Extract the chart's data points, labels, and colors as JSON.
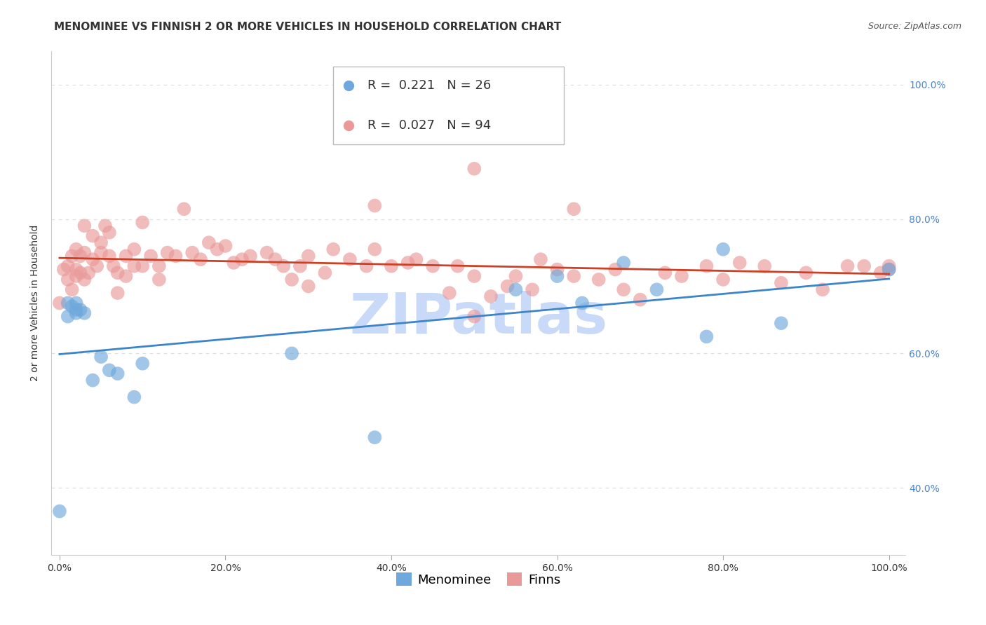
{
  "title": "MENOMINEE VS FINNISH 2 OR MORE VEHICLES IN HOUSEHOLD CORRELATION CHART",
  "source": "Source: ZipAtlas.com",
  "xlabel": "",
  "ylabel": "2 or more Vehicles in Household",
  "legend_labels": [
    "Menominee",
    "Finns"
  ],
  "legend_r_n": [
    {
      "R": "0.221",
      "N": "26",
      "color": "#6fa8dc"
    },
    {
      "R": "0.027",
      "N": "94",
      "color": "#ea9999"
    }
  ],
  "menominee_x": [
    0.0,
    0.01,
    0.01,
    0.015,
    0.02,
    0.02,
    0.02,
    0.025,
    0.03,
    0.04,
    0.05,
    0.06,
    0.07,
    0.09,
    0.1,
    0.28,
    0.38,
    0.55,
    0.6,
    0.63,
    0.68,
    0.72,
    0.78,
    0.8,
    0.87,
    1.0
  ],
  "menominee_y": [
    0.365,
    0.675,
    0.655,
    0.67,
    0.675,
    0.665,
    0.66,
    0.665,
    0.66,
    0.56,
    0.595,
    0.575,
    0.57,
    0.535,
    0.585,
    0.6,
    0.475,
    0.695,
    0.715,
    0.675,
    0.735,
    0.695,
    0.625,
    0.755,
    0.645,
    0.725
  ],
  "finns_x": [
    0.0,
    0.005,
    0.01,
    0.01,
    0.015,
    0.015,
    0.02,
    0.02,
    0.02,
    0.025,
    0.025,
    0.03,
    0.03,
    0.03,
    0.035,
    0.04,
    0.04,
    0.045,
    0.05,
    0.05,
    0.055,
    0.06,
    0.06,
    0.065,
    0.07,
    0.07,
    0.08,
    0.08,
    0.09,
    0.09,
    0.1,
    0.1,
    0.11,
    0.12,
    0.12,
    0.13,
    0.14,
    0.15,
    0.16,
    0.17,
    0.18,
    0.19,
    0.2,
    0.21,
    0.22,
    0.23,
    0.25,
    0.26,
    0.27,
    0.28,
    0.29,
    0.3,
    0.3,
    0.32,
    0.33,
    0.35,
    0.37,
    0.38,
    0.4,
    0.42,
    0.43,
    0.45,
    0.47,
    0.48,
    0.5,
    0.5,
    0.52,
    0.54,
    0.55,
    0.57,
    0.58,
    0.6,
    0.62,
    0.65,
    0.67,
    0.68,
    0.7,
    0.73,
    0.75,
    0.78,
    0.8,
    0.82,
    0.85,
    0.87,
    0.9,
    0.92,
    0.95,
    0.97,
    0.99,
    1.0,
    1.0,
    0.5,
    0.38,
    0.62
  ],
  "finns_y": [
    0.675,
    0.725,
    0.73,
    0.71,
    0.745,
    0.695,
    0.755,
    0.725,
    0.715,
    0.745,
    0.72,
    0.79,
    0.75,
    0.71,
    0.72,
    0.775,
    0.74,
    0.73,
    0.765,
    0.75,
    0.79,
    0.745,
    0.78,
    0.73,
    0.72,
    0.69,
    0.745,
    0.715,
    0.755,
    0.73,
    0.795,
    0.73,
    0.745,
    0.73,
    0.71,
    0.75,
    0.745,
    0.815,
    0.75,
    0.74,
    0.765,
    0.755,
    0.76,
    0.735,
    0.74,
    0.745,
    0.75,
    0.74,
    0.73,
    0.71,
    0.73,
    0.7,
    0.745,
    0.72,
    0.755,
    0.74,
    0.73,
    0.755,
    0.73,
    0.735,
    0.74,
    0.73,
    0.69,
    0.73,
    0.655,
    0.715,
    0.685,
    0.7,
    0.715,
    0.695,
    0.74,
    0.725,
    0.715,
    0.71,
    0.725,
    0.695,
    0.68,
    0.72,
    0.715,
    0.73,
    0.71,
    0.735,
    0.73,
    0.705,
    0.72,
    0.695,
    0.73,
    0.73,
    0.72,
    0.725,
    0.73,
    0.875,
    0.82,
    0.815
  ],
  "xlim": [
    0.0,
    1.0
  ],
  "ylim": [
    0.3,
    1.05
  ],
  "xtick_labels": [
    "0.0%",
    "20.0%",
    "40.0%",
    "60.0%",
    "80.0%",
    "100.0%"
  ],
  "xtick_vals": [
    0.0,
    0.2,
    0.4,
    0.6,
    0.8,
    1.0
  ],
  "ytick_labels_right": [
    "40.0%",
    "60.0%",
    "80.0%",
    "100.0%"
  ],
  "ytick_vals_right": [
    0.4,
    0.6,
    0.8,
    1.0
  ],
  "background_color": "#ffffff",
  "plot_bg_color": "#ffffff",
  "grid_color": "#e0e0e0",
  "menominee_color": "#6fa8dc",
  "finns_color": "#ea9999",
  "menominee_line_color": "#3d85c8",
  "finns_line_color": "#cc4125",
  "watermark_text": "ZIPatlas",
  "watermark_color": "#c9daf8",
  "title_fontsize": 11,
  "source_fontsize": 9,
  "axis_label_fontsize": 10,
  "tick_fontsize": 10,
  "legend_fontsize": 13
}
